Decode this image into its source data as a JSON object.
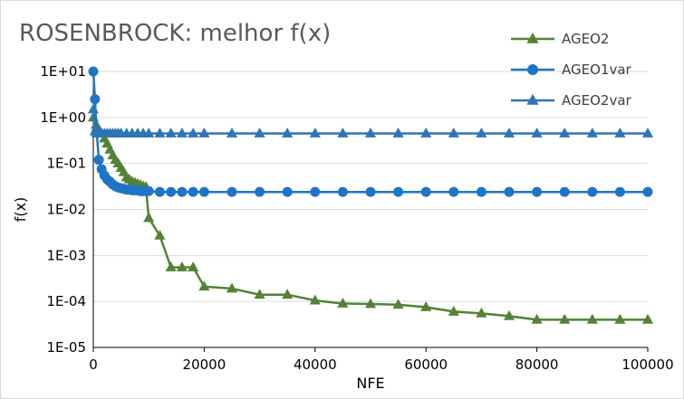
{
  "chart_data": {
    "type": "line",
    "title": "ROSENBROCK: melhor f(x)",
    "xlabel": "NFE",
    "ylabel": "f(x)",
    "yscale": "log",
    "xlim": [
      0,
      100000
    ],
    "ylim": [
      1e-05,
      10
    ],
    "xticks": [
      0,
      20000,
      40000,
      60000,
      80000,
      100000
    ],
    "xtick_labels": [
      "0",
      "20000",
      "40000",
      "60000",
      "80000",
      "100000"
    ],
    "yticks": [
      1e-05,
      0.0001,
      0.001,
      0.01,
      0.1,
      1,
      10
    ],
    "ytick_labels": [
      "1E-05",
      "1E-04",
      "1E-03",
      "1E-02",
      "1E-01",
      "1E+00",
      "1E+01"
    ],
    "legend_position": "top-right",
    "series": [
      {
        "name": "AGEO2",
        "color": "#548235",
        "marker": "triangle",
        "x": [
          0,
          500,
          1000,
          1500,
          2000,
          2500,
          3000,
          3500,
          4000,
          4500,
          5000,
          5500,
          6000,
          6500,
          7000,
          7500,
          8000,
          8500,
          9000,
          9500,
          10000,
          12000,
          14000,
          16000,
          18000,
          20000,
          25000,
          30000,
          35000,
          40000,
          45000,
          50000,
          55000,
          60000,
          65000,
          70000,
          75000,
          80000,
          85000,
          90000,
          95000,
          100000
        ],
        "y": [
          1.0,
          0.7,
          0.55,
          0.45,
          0.35,
          0.27,
          0.2,
          0.15,
          0.12,
          0.1,
          0.08,
          0.065,
          0.05,
          0.045,
          0.04,
          0.038,
          0.036,
          0.034,
          0.032,
          0.031,
          0.0065,
          0.0027,
          0.00055,
          0.00055,
          0.00055,
          0.00021,
          0.00019,
          0.00014,
          0.00014,
          0.000105,
          9e-05,
          8.8e-05,
          8.5e-05,
          7.5e-05,
          6e-05,
          5.5e-05,
          4.8e-05,
          4e-05,
          4e-05,
          4e-05,
          4e-05,
          4e-05
        ]
      },
      {
        "name": "AGEO1var",
        "color": "#1f74c6",
        "marker": "circle",
        "x": [
          0,
          300,
          600,
          1000,
          1500,
          2000,
          2500,
          3000,
          3500,
          4000,
          4500,
          5000,
          5500,
          6000,
          6500,
          7000,
          7500,
          8000,
          8500,
          9000,
          9500,
          10000,
          12000,
          14000,
          16000,
          18000,
          20000,
          25000,
          30000,
          35000,
          40000,
          45000,
          50000,
          55000,
          60000,
          65000,
          70000,
          75000,
          80000,
          85000,
          90000,
          95000,
          100000
        ],
        "y": [
          10,
          2.5,
          0.5,
          0.12,
          0.075,
          0.055,
          0.045,
          0.04,
          0.035,
          0.032,
          0.03,
          0.029,
          0.028,
          0.027,
          0.027,
          0.026,
          0.026,
          0.026,
          0.025,
          0.025,
          0.025,
          0.025,
          0.024,
          0.024,
          0.024,
          0.024,
          0.024,
          0.024,
          0.024,
          0.024,
          0.024,
          0.024,
          0.024,
          0.024,
          0.024,
          0.024,
          0.024,
          0.024,
          0.024,
          0.024,
          0.024,
          0.024,
          0.024
        ]
      },
      {
        "name": "AGEO2var",
        "color": "#2e75b6",
        "marker": "triangle",
        "x": [
          0,
          300,
          600,
          1000,
          1500,
          2000,
          2500,
          3000,
          3500,
          4000,
          4500,
          5000,
          6000,
          7000,
          8000,
          9000,
          10000,
          12000,
          14000,
          16000,
          18000,
          20000,
          25000,
          30000,
          35000,
          40000,
          45000,
          50000,
          55000,
          60000,
          65000,
          70000,
          75000,
          80000,
          85000,
          90000,
          95000,
          100000
        ],
        "y": [
          1.5,
          0.5,
          0.46,
          0.45,
          0.45,
          0.45,
          0.45,
          0.45,
          0.45,
          0.45,
          0.45,
          0.45,
          0.45,
          0.45,
          0.45,
          0.45,
          0.45,
          0.45,
          0.45,
          0.45,
          0.45,
          0.45,
          0.45,
          0.45,
          0.45,
          0.45,
          0.45,
          0.45,
          0.45,
          0.45,
          0.45,
          0.45,
          0.45,
          0.45,
          0.45,
          0.45,
          0.45,
          0.45
        ]
      }
    ]
  }
}
